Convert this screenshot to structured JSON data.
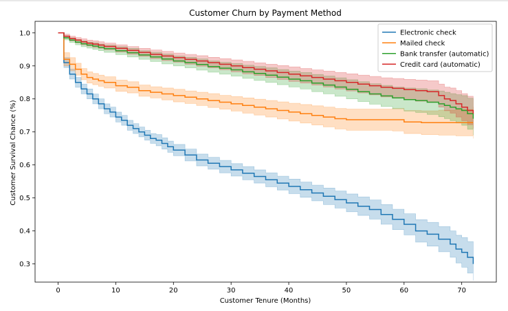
{
  "chart_data": {
    "type": "line",
    "title": "Customer Churn by Payment Method",
    "xlabel": "Customer Tenure (Months)",
    "ylabel": "Customer Survival Chance (%)",
    "xlim": [
      -4,
      76
    ],
    "ylim": [
      0.245,
      1.035
    ],
    "xticks": [
      0,
      10,
      20,
      30,
      40,
      50,
      60,
      70
    ],
    "yticks": [
      0.3,
      0.4,
      0.5,
      0.6,
      0.7,
      0.8,
      0.9,
      1.0
    ],
    "xtick_labels": [
      "0",
      "10",
      "20",
      "30",
      "40",
      "50",
      "60",
      "70"
    ],
    "ytick_labels": [
      "0.3",
      "0.4",
      "0.5",
      "0.6",
      "0.7",
      "0.8",
      "0.9",
      "1.0"
    ],
    "grid": false,
    "legend_position": "top-right",
    "step": true,
    "series": [
      {
        "name": "Electronic check",
        "color": "#1f77b4",
        "x": [
          0,
          1,
          2,
          3,
          4,
          5,
          6,
          7,
          8,
          9,
          10,
          11,
          12,
          13,
          14,
          15,
          16,
          17,
          18,
          19,
          20,
          22,
          24,
          26,
          28,
          30,
          32,
          34,
          36,
          38,
          40,
          42,
          44,
          46,
          48,
          50,
          52,
          54,
          56,
          58,
          60,
          62,
          64,
          66,
          68,
          69,
          70,
          71,
          72
        ],
        "y": [
          1.0,
          0.91,
          0.875,
          0.85,
          0.83,
          0.815,
          0.8,
          0.785,
          0.77,
          0.76,
          0.745,
          0.735,
          0.72,
          0.71,
          0.7,
          0.69,
          0.68,
          0.675,
          0.665,
          0.655,
          0.645,
          0.63,
          0.615,
          0.605,
          0.595,
          0.585,
          0.575,
          0.565,
          0.555,
          0.545,
          0.535,
          0.525,
          0.515,
          0.505,
          0.495,
          0.485,
          0.475,
          0.465,
          0.45,
          0.435,
          0.42,
          0.4,
          0.39,
          0.375,
          0.36,
          0.345,
          0.335,
          0.32,
          0.3
        ],
        "lower": [
          1.0,
          0.895,
          0.86,
          0.835,
          0.815,
          0.8,
          0.785,
          0.77,
          0.755,
          0.745,
          0.73,
          0.72,
          0.705,
          0.695,
          0.685,
          0.675,
          0.665,
          0.658,
          0.648,
          0.638,
          0.628,
          0.612,
          0.597,
          0.587,
          0.576,
          0.566,
          0.555,
          0.545,
          0.534,
          0.524,
          0.513,
          0.502,
          0.491,
          0.48,
          0.469,
          0.458,
          0.447,
          0.436,
          0.42,
          0.404,
          0.388,
          0.366,
          0.354,
          0.337,
          0.32,
          0.303,
          0.29,
          0.272,
          0.25
        ],
        "upper": [
          1.0,
          0.925,
          0.89,
          0.865,
          0.845,
          0.83,
          0.815,
          0.8,
          0.785,
          0.775,
          0.76,
          0.75,
          0.735,
          0.725,
          0.715,
          0.705,
          0.695,
          0.692,
          0.682,
          0.672,
          0.662,
          0.648,
          0.633,
          0.623,
          0.614,
          0.604,
          0.595,
          0.585,
          0.576,
          0.566,
          0.557,
          0.548,
          0.539,
          0.53,
          0.521,
          0.512,
          0.503,
          0.494,
          0.48,
          0.466,
          0.452,
          0.434,
          0.426,
          0.413,
          0.4,
          0.387,
          0.38,
          0.368,
          0.35
        ]
      },
      {
        "name": "Mailed check",
        "color": "#ff7f0e",
        "x": [
          0,
          1,
          2,
          3,
          4,
          5,
          6,
          7,
          8,
          10,
          12,
          14,
          16,
          18,
          20,
          22,
          24,
          26,
          28,
          30,
          32,
          34,
          36,
          38,
          40,
          42,
          44,
          46,
          48,
          50,
          52,
          55,
          58,
          60,
          63,
          66,
          69,
          72
        ],
        "y": [
          1.0,
          0.92,
          0.905,
          0.89,
          0.875,
          0.865,
          0.86,
          0.855,
          0.85,
          0.84,
          0.835,
          0.825,
          0.82,
          0.815,
          0.81,
          0.805,
          0.8,
          0.795,
          0.79,
          0.785,
          0.78,
          0.775,
          0.77,
          0.765,
          0.76,
          0.755,
          0.75,
          0.745,
          0.74,
          0.737,
          0.737,
          0.737,
          0.737,
          0.73,
          0.728,
          0.728,
          0.728,
          0.728
        ],
        "lower": [
          1.0,
          0.9,
          0.885,
          0.872,
          0.858,
          0.848,
          0.843,
          0.838,
          0.833,
          0.823,
          0.818,
          0.808,
          0.803,
          0.797,
          0.791,
          0.786,
          0.78,
          0.774,
          0.769,
          0.763,
          0.757,
          0.751,
          0.745,
          0.739,
          0.733,
          0.727,
          0.721,
          0.715,
          0.709,
          0.705,
          0.705,
          0.705,
          0.703,
          0.695,
          0.692,
          0.69,
          0.688,
          0.68
        ],
        "upper": [
          1.0,
          0.94,
          0.925,
          0.908,
          0.892,
          0.882,
          0.877,
          0.872,
          0.867,
          0.857,
          0.852,
          0.842,
          0.837,
          0.833,
          0.829,
          0.824,
          0.82,
          0.816,
          0.811,
          0.807,
          0.803,
          0.799,
          0.795,
          0.791,
          0.787,
          0.783,
          0.779,
          0.775,
          0.771,
          0.769,
          0.769,
          0.769,
          0.771,
          0.765,
          0.764,
          0.766,
          0.768,
          0.776
        ]
      },
      {
        "name": "Bank transfer (automatic)",
        "color": "#2ca02c",
        "x": [
          0,
          1,
          2,
          3,
          4,
          5,
          6,
          7,
          8,
          10,
          12,
          14,
          16,
          18,
          20,
          22,
          24,
          26,
          28,
          30,
          32,
          34,
          36,
          38,
          40,
          42,
          44,
          46,
          48,
          50,
          52,
          54,
          56,
          58,
          60,
          62,
          64,
          66,
          67,
          68,
          69,
          70,
          71,
          72
        ],
        "y": [
          1.0,
          0.985,
          0.978,
          0.972,
          0.967,
          0.963,
          0.96,
          0.956,
          0.952,
          0.946,
          0.94,
          0.933,
          0.927,
          0.921,
          0.915,
          0.91,
          0.904,
          0.898,
          0.893,
          0.888,
          0.882,
          0.877,
          0.872,
          0.866,
          0.86,
          0.855,
          0.848,
          0.842,
          0.836,
          0.829,
          0.822,
          0.815,
          0.809,
          0.803,
          0.798,
          0.795,
          0.79,
          0.785,
          0.78,
          0.775,
          0.77,
          0.765,
          0.755,
          0.74
        ],
        "lower": [
          1.0,
          0.979,
          0.971,
          0.964,
          0.958,
          0.954,
          0.95,
          0.946,
          0.941,
          0.934,
          0.927,
          0.92,
          0.913,
          0.906,
          0.9,
          0.894,
          0.887,
          0.881,
          0.875,
          0.869,
          0.862,
          0.856,
          0.85,
          0.843,
          0.836,
          0.83,
          0.822,
          0.815,
          0.808,
          0.8,
          0.792,
          0.784,
          0.777,
          0.77,
          0.763,
          0.759,
          0.753,
          0.746,
          0.74,
          0.734,
          0.727,
          0.72,
          0.708,
          0.69
        ],
        "upper": [
          1.0,
          0.991,
          0.985,
          0.98,
          0.976,
          0.972,
          0.97,
          0.966,
          0.963,
          0.958,
          0.953,
          0.946,
          0.941,
          0.936,
          0.93,
          0.926,
          0.921,
          0.915,
          0.911,
          0.907,
          0.902,
          0.898,
          0.894,
          0.889,
          0.884,
          0.88,
          0.874,
          0.869,
          0.864,
          0.858,
          0.852,
          0.846,
          0.841,
          0.836,
          0.833,
          0.831,
          0.827,
          0.824,
          0.82,
          0.816,
          0.813,
          0.81,
          0.802,
          0.79
        ]
      },
      {
        "name": "Credit card (automatic)",
        "color": "#d62728",
        "x": [
          0,
          1,
          2,
          3,
          4,
          5,
          6,
          7,
          8,
          10,
          12,
          14,
          16,
          18,
          20,
          22,
          24,
          26,
          28,
          30,
          32,
          34,
          36,
          38,
          40,
          42,
          44,
          46,
          48,
          50,
          52,
          54,
          56,
          58,
          60,
          62,
          64,
          66,
          67,
          68,
          69,
          70,
          71,
          72
        ],
        "y": [
          1.0,
          0.99,
          0.983,
          0.978,
          0.973,
          0.969,
          0.966,
          0.963,
          0.959,
          0.953,
          0.947,
          0.941,
          0.935,
          0.93,
          0.925,
          0.92,
          0.915,
          0.91,
          0.905,
          0.9,
          0.895,
          0.89,
          0.885,
          0.88,
          0.875,
          0.87,
          0.865,
          0.86,
          0.855,
          0.85,
          0.845,
          0.84,
          0.835,
          0.832,
          0.828,
          0.825,
          0.822,
          0.81,
          0.8,
          0.795,
          0.785,
          0.775,
          0.765,
          0.755
        ],
        "lower": [
          1.0,
          0.984,
          0.976,
          0.97,
          0.964,
          0.96,
          0.956,
          0.953,
          0.949,
          0.942,
          0.935,
          0.929,
          0.922,
          0.916,
          0.911,
          0.905,
          0.899,
          0.894,
          0.888,
          0.882,
          0.876,
          0.871,
          0.865,
          0.859,
          0.853,
          0.848,
          0.842,
          0.836,
          0.83,
          0.824,
          0.818,
          0.812,
          0.806,
          0.802,
          0.797,
          0.793,
          0.789,
          0.775,
          0.764,
          0.757,
          0.745,
          0.734,
          0.722,
          0.71
        ],
        "upper": [
          1.0,
          0.996,
          0.99,
          0.986,
          0.982,
          0.978,
          0.976,
          0.973,
          0.969,
          0.964,
          0.959,
          0.953,
          0.948,
          0.944,
          0.939,
          0.935,
          0.931,
          0.926,
          0.922,
          0.918,
          0.914,
          0.909,
          0.905,
          0.901,
          0.897,
          0.892,
          0.888,
          0.884,
          0.88,
          0.876,
          0.872,
          0.868,
          0.864,
          0.862,
          0.859,
          0.857,
          0.855,
          0.845,
          0.836,
          0.833,
          0.825,
          0.816,
          0.808,
          0.8
        ]
      }
    ]
  }
}
